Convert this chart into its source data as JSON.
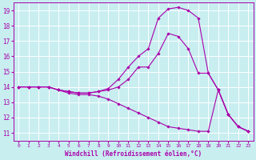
{
  "xlabel": "Windchill (Refroidissement éolien,°C)",
  "background_color": "#c8eef0",
  "grid_color": "#ffffff",
  "line_color": "#aa00aa",
  "x_values": [
    0,
    1,
    2,
    3,
    4,
    5,
    6,
    7,
    8,
    9,
    10,
    11,
    12,
    13,
    14,
    15,
    16,
    17,
    18,
    19,
    20,
    21,
    22,
    23
  ],
  "curve_top": [
    14.0,
    14.0,
    14.0,
    14.0,
    13.8,
    13.7,
    13.6,
    13.6,
    13.7,
    13.9,
    14.5,
    15.3,
    16.0,
    16.5,
    18.5,
    19.1,
    19.2,
    19.0,
    18.5,
    14.9,
    13.8,
    12.2,
    11.4,
    11.1
  ],
  "curve_mid": [
    14.0,
    14.0,
    14.0,
    14.0,
    13.8,
    13.7,
    13.6,
    13.6,
    13.7,
    13.8,
    14.0,
    14.5,
    15.3,
    15.3,
    16.2,
    17.5,
    17.3,
    16.5,
    14.9,
    14.9,
    13.8,
    12.2,
    11.4,
    11.1
  ],
  "curve_bot": [
    14.0,
    14.0,
    14.0,
    14.0,
    13.8,
    13.6,
    13.5,
    13.5,
    13.4,
    13.2,
    12.9,
    12.6,
    12.3,
    12.0,
    11.7,
    11.4,
    11.3,
    11.2,
    11.1,
    11.1,
    13.8,
    12.2,
    11.4,
    11.1
  ],
  "xlim": [
    -0.5,
    23.5
  ],
  "ylim": [
    10.5,
    19.5
  ],
  "yticks": [
    11,
    12,
    13,
    14,
    15,
    16,
    17,
    18,
    19
  ],
  "xticks": [
    0,
    1,
    2,
    3,
    4,
    5,
    6,
    7,
    8,
    9,
    10,
    11,
    12,
    13,
    14,
    15,
    16,
    17,
    18,
    19,
    20,
    21,
    22,
    23
  ],
  "xtick_fontsize": 4.5,
  "ytick_fontsize": 5.5,
  "xlabel_fontsize": 5.5,
  "markersize": 1.8,
  "linewidth": 0.8
}
